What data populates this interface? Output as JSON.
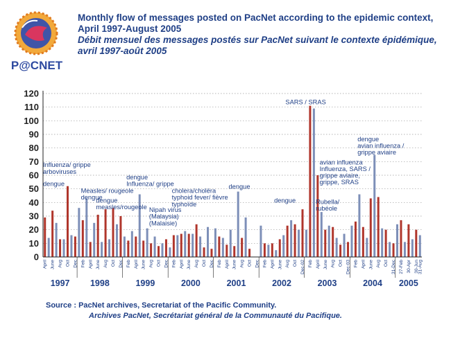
{
  "title_en": "Monthly flow of messages posted on PacNet according to the epidemic context, April 1997-August 2005",
  "title_fr": "Débit mensuel des messages postés sur PacNet suivant le contexte épidémique, avril 1997-août 2005",
  "logo_text": "P@CNET",
  "source_en": "Source : PacNet archives, Secretariat of the Pacific Community.",
  "source_fr": "Archives PacNet, Secrétariat général de la Communauté du Pacifique.",
  "colors": {
    "bar_red": "#b0362c",
    "bar_blue": "#7d8fb8",
    "text_blue": "#1f3f86",
    "axis": "#222222",
    "grid": "#9a9a9a"
  },
  "chart_data": {
    "type": "bar",
    "ylim": [
      0,
      120
    ],
    "yticks": [
      0,
      10,
      20,
      30,
      40,
      50,
      60,
      70,
      80,
      90,
      100,
      110,
      120
    ],
    "grid": "horizontal dotted",
    "months_start": "1997-04",
    "values": [
      29,
      14,
      34,
      25,
      13,
      13,
      52,
      16,
      15,
      36,
      27,
      43,
      11,
      25,
      31,
      11,
      35,
      13,
      36,
      24,
      30,
      15,
      12,
      19,
      15,
      46,
      12,
      21,
      10,
      15,
      8,
      10,
      13,
      7,
      16,
      16,
      17,
      19,
      17,
      17,
      24,
      15,
      7,
      22,
      6,
      21,
      15,
      14,
      9,
      20,
      8,
      48,
      14,
      29,
      6,
      0,
      0,
      23,
      10,
      9,
      10,
      5,
      13,
      16,
      23,
      27,
      24,
      20,
      35,
      20,
      111,
      109,
      60,
      33,
      20,
      23,
      22,
      14,
      9,
      17,
      11,
      23,
      26,
      46,
      22,
      14,
      43,
      75,
      44,
      21,
      20,
      11,
      10,
      24,
      27,
      11,
      24,
      13,
      20,
      16
    ],
    "x_month_labels": [
      {
        "label": "April",
        "index": 0
      },
      {
        "label": "June",
        "index": 2
      },
      {
        "label": "Aug",
        "index": 4
      },
      {
        "label": "Oct",
        "index": 6
      },
      {
        "label": "Dec",
        "index": 8
      },
      {
        "label": "Feb",
        "index": 10
      },
      {
        "label": "April",
        "index": 12
      },
      {
        "label": "June",
        "index": 14
      },
      {
        "label": "Aug",
        "index": 16
      },
      {
        "label": "Oct",
        "index": 18
      },
      {
        "label": "Dec",
        "index": 20
      },
      {
        "label": "Feb",
        "index": 22
      },
      {
        "label": "April",
        "index": 24
      },
      {
        "label": "June",
        "index": 26
      },
      {
        "label": "Aug",
        "index": 28
      },
      {
        "label": "Oct",
        "index": 30
      },
      {
        "label": "Dec",
        "index": 32
      },
      {
        "label": "Feb",
        "index": 34
      },
      {
        "label": "April",
        "index": 36
      },
      {
        "label": "June",
        "index": 38
      },
      {
        "label": "Aug",
        "index": 40
      },
      {
        "label": "Oct",
        "index": 42
      },
      {
        "label": "Dec",
        "index": 44
      },
      {
        "label": "Feb",
        "index": 46
      },
      {
        "label": "April",
        "index": 48
      },
      {
        "label": "June",
        "index": 50
      },
      {
        "label": "Aug",
        "index": 52
      },
      {
        "label": "Oct",
        "index": 54
      },
      {
        "label": "Dec",
        "index": 56
      },
      {
        "label": "Feb",
        "index": 58
      },
      {
        "label": "April",
        "index": 60
      },
      {
        "label": "June",
        "index": 62
      },
      {
        "label": "Aug",
        "index": 64
      },
      {
        "label": "Oct",
        "index": 66
      },
      {
        "label": "Dec-02",
        "index": 68
      },
      {
        "label": "Feb",
        "index": 70
      },
      {
        "label": "April",
        "index": 72
      },
      {
        "label": "June",
        "index": 74
      },
      {
        "label": "Aug",
        "index": 76
      },
      {
        "label": "Oct",
        "index": 78
      },
      {
        "label": "Dec-03",
        "index": 80
      },
      {
        "label": "Feb",
        "index": 82
      },
      {
        "label": "April",
        "index": 84
      },
      {
        "label": "June",
        "index": 86
      },
      {
        "label": "Aug",
        "index": 88
      },
      {
        "label": "Oct",
        "index": 90
      },
      {
        "label": "31-Dec",
        "index": 92
      },
      {
        "label": "27-Feb",
        "index": 94
      },
      {
        "label": "30-Apr",
        "index": 96
      },
      {
        "label": "30-Jun",
        "index": 98
      },
      {
        "label": "31-Aug",
        "index": 99
      }
    ],
    "years": [
      {
        "label": "1997",
        "start": 0,
        "end": 8
      },
      {
        "label": "1998",
        "start": 9,
        "end": 20
      },
      {
        "label": "1999",
        "start": 21,
        "end": 32
      },
      {
        "label": "2000",
        "start": 33,
        "end": 44
      },
      {
        "label": "2001",
        "start": 45,
        "end": 56
      },
      {
        "label": "2002",
        "start": 57,
        "end": 68
      },
      {
        "label": "2003",
        "start": 69,
        "end": 80
      },
      {
        "label": "2004",
        "start": 81,
        "end": 92
      },
      {
        "label": "2005",
        "start": 93,
        "end": 99
      }
    ],
    "annotations": [
      {
        "lines": [
          "dengue"
        ],
        "x": 0,
        "y": 52
      },
      {
        "lines": [
          "Influenza/ grippe",
          "arboviruses"
        ],
        "x": 0,
        "y": 66
      },
      {
        "lines": [
          "Measles/ rougeole",
          "dengue"
        ],
        "x": 10,
        "y": 47
      },
      {
        "lines": [
          "dengue",
          "measles/rougeole"
        ],
        "x": 14,
        "y": 40
      },
      {
        "lines": [
          "dengue",
          "Influenza/ grippe"
        ],
        "x": 22,
        "y": 57
      },
      {
        "lines": [
          "Nipah virus",
          "(Malaysia)",
          "(Malaisie)"
        ],
        "x": 28,
        "y": 33
      },
      {
        "lines": [
          "cholera/choléra",
          "typhoid fever/ fièvre",
          "typhoïde"
        ],
        "x": 34,
        "y": 47
      },
      {
        "lines": [
          "dengue"
        ],
        "x": 49,
        "y": 50
      },
      {
        "lines": [
          "SARS / SRAS"
        ],
        "x": 64,
        "y": 112
      },
      {
        "lines": [
          "dengue"
        ],
        "x": 61,
        "y": 40
      },
      {
        "lines": [
          "Rubella/",
          "rubéole"
        ],
        "x": 72,
        "y": 39
      },
      {
        "lines": [
          "avian influenza",
          "Influenza, SARS /",
          "grippe aviaire,",
          "grippe, SRAS"
        ],
        "x": 73,
        "y": 68
      },
      {
        "lines": [
          "dengue",
          "avian influenza /",
          "grippe aviaire"
        ],
        "x": 83,
        "y": 85
      }
    ]
  }
}
